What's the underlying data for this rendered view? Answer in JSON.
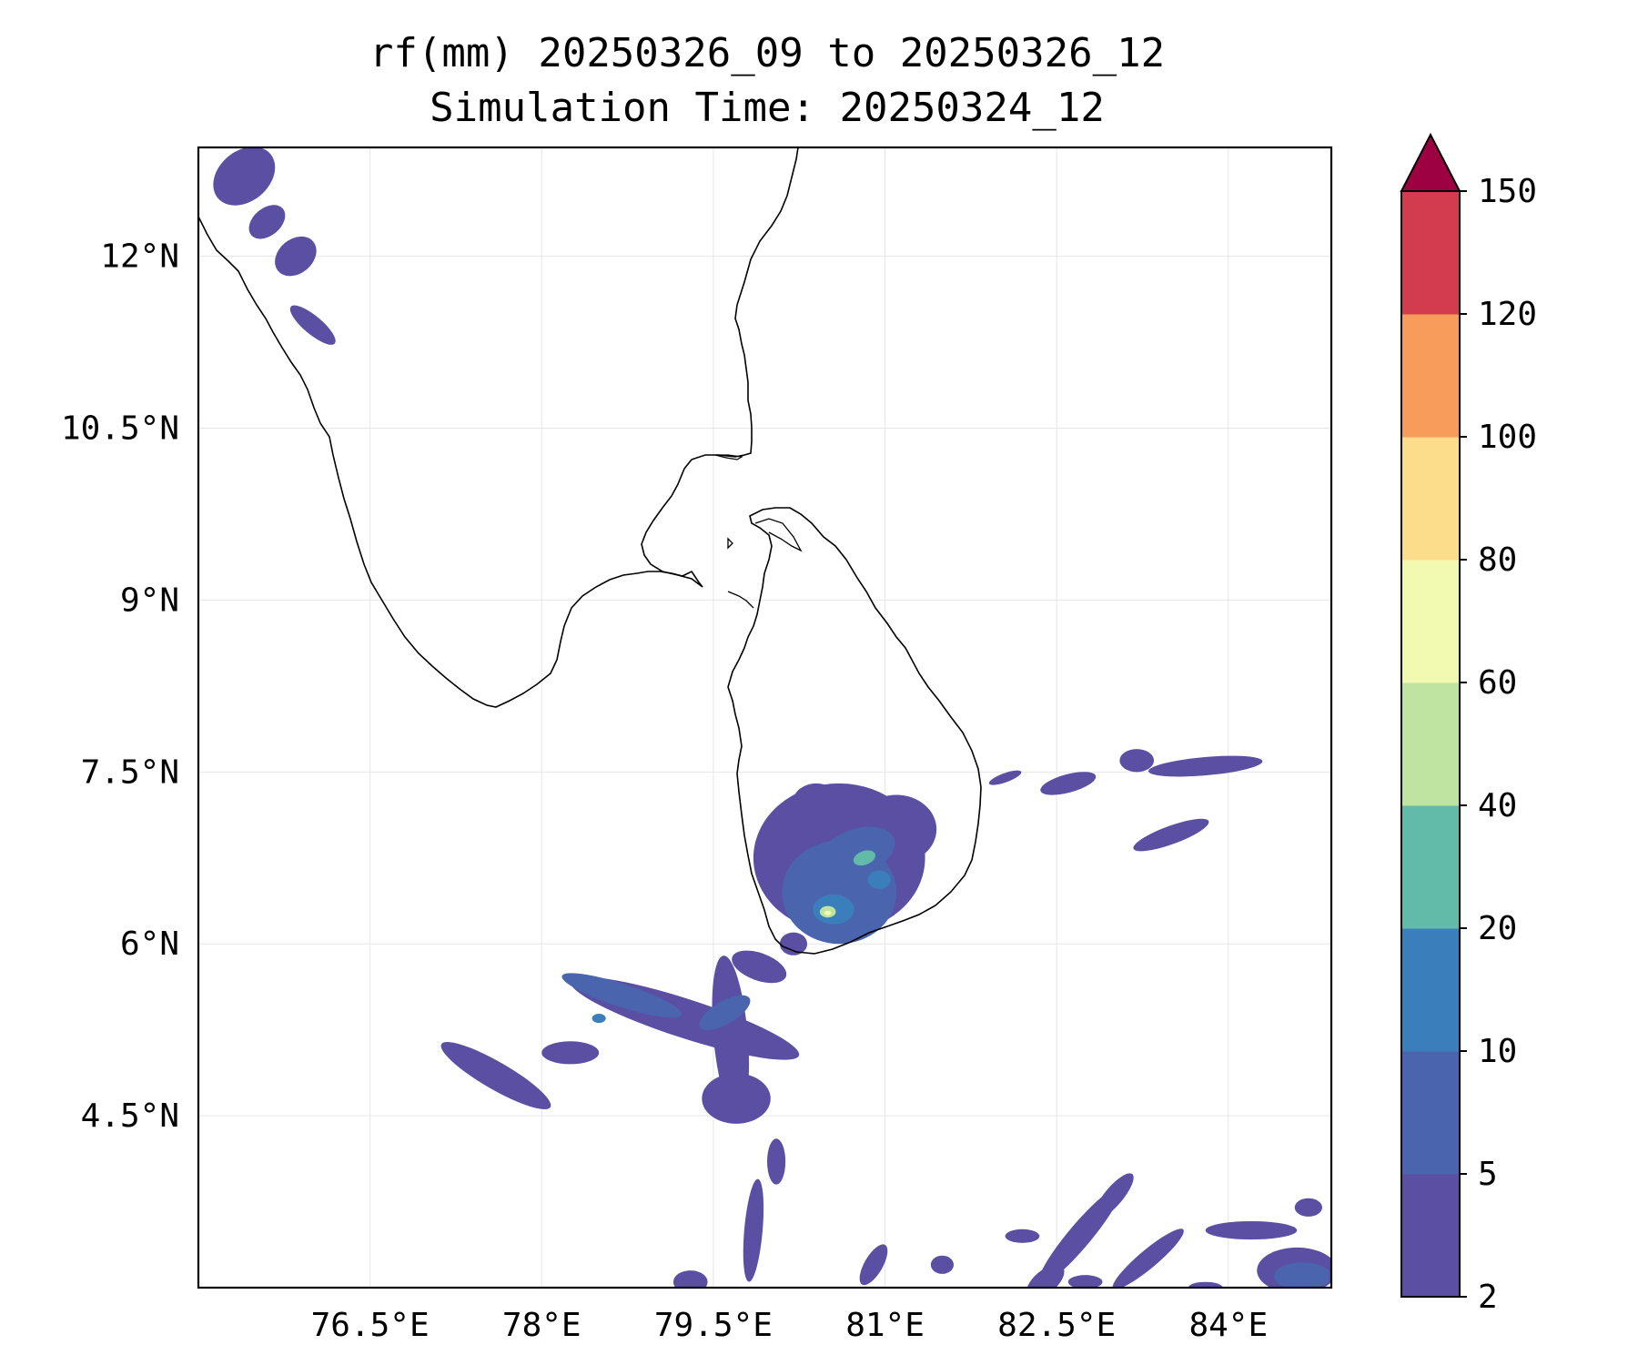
{
  "title": {
    "line1": "rf(mm) 20250326_09 to 20250326_12",
    "line2": "Simulation Time: 20250324_12"
  },
  "map": {
    "lon_range": [
      75.0,
      84.9
    ],
    "lat_range": [
      3.0,
      12.95
    ],
    "x_ticks": [
      {
        "value": 76.5,
        "label": "76.5°E"
      },
      {
        "value": 78.0,
        "label": "78°E"
      },
      {
        "value": 79.5,
        "label": "79.5°E"
      },
      {
        "value": 81.0,
        "label": "81°E"
      },
      {
        "value": 82.5,
        "label": "82.5°E"
      },
      {
        "value": 84.0,
        "label": "84°E"
      }
    ],
    "y_ticks": [
      {
        "value": 4.5,
        "label": "4.5°N"
      },
      {
        "value": 6.0,
        "label": "6°N"
      },
      {
        "value": 7.5,
        "label": "7.5°N"
      },
      {
        "value": 9.0,
        "label": "9°N"
      },
      {
        "value": 10.5,
        "label": "10.5°N"
      },
      {
        "value": 12.0,
        "label": "12°N"
      }
    ],
    "grid": true,
    "rain_cells": [
      {
        "lon": 75.4,
        "lat": 12.7,
        "rx": 0.3,
        "ry": 0.22,
        "rot": -40,
        "level": 1
      },
      {
        "lon": 75.6,
        "lat": 12.3,
        "rx": 0.18,
        "ry": 0.12,
        "rot": -40,
        "level": 1
      },
      {
        "lon": 75.85,
        "lat": 12.0,
        "rx": 0.2,
        "ry": 0.15,
        "rot": -40,
        "level": 1
      },
      {
        "lon": 76.0,
        "lat": 11.4,
        "rx": 0.25,
        "ry": 0.08,
        "rot": 40,
        "level": 1
      },
      {
        "lon": 80.6,
        "lat": 6.75,
        "rx": 0.75,
        "ry": 0.65,
        "rot": 0,
        "level": 1
      },
      {
        "lon": 81.1,
        "lat": 7.0,
        "rx": 0.35,
        "ry": 0.3,
        "rot": 0,
        "level": 1
      },
      {
        "lon": 80.4,
        "lat": 7.25,
        "rx": 0.2,
        "ry": 0.15,
        "rot": 0,
        "level": 1
      },
      {
        "lon": 80.6,
        "lat": 6.45,
        "rx": 0.5,
        "ry": 0.45,
        "rot": 0,
        "level": 2
      },
      {
        "lon": 80.75,
        "lat": 6.8,
        "rx": 0.35,
        "ry": 0.2,
        "rot": -20,
        "level": 2
      },
      {
        "lon": 80.55,
        "lat": 6.3,
        "rx": 0.18,
        "ry": 0.13,
        "rot": 0,
        "level": 3
      },
      {
        "lon": 80.95,
        "lat": 6.56,
        "rx": 0.1,
        "ry": 0.08,
        "rot": 0,
        "level": 3
      },
      {
        "lon": 80.82,
        "lat": 6.75,
        "rx": 0.1,
        "ry": 0.06,
        "rot": -20,
        "level": 4
      },
      {
        "lon": 80.5,
        "lat": 6.28,
        "rx": 0.07,
        "ry": 0.05,
        "rot": 0,
        "level": 5
      },
      {
        "lon": 80.5,
        "lat": 6.27,
        "rx": 0.03,
        "ry": 0.02,
        "rot": 0,
        "level": 6
      },
      {
        "lon": 79.25,
        "lat": 5.35,
        "rx": 1.05,
        "ry": 0.17,
        "rot": 18,
        "level": 1
      },
      {
        "lon": 79.65,
        "lat": 5.2,
        "rx": 0.15,
        "ry": 0.7,
        "rot": -5,
        "level": 1
      },
      {
        "lon": 79.7,
        "lat": 4.65,
        "rx": 0.3,
        "ry": 0.22,
        "rot": 0,
        "level": 1
      },
      {
        "lon": 78.7,
        "lat": 5.55,
        "rx": 0.55,
        "ry": 0.1,
        "rot": 18,
        "level": 2
      },
      {
        "lon": 79.6,
        "lat": 5.4,
        "rx": 0.25,
        "ry": 0.1,
        "rot": -30,
        "level": 2
      },
      {
        "lon": 77.6,
        "lat": 4.85,
        "rx": 0.55,
        "ry": 0.12,
        "rot": 30,
        "level": 1
      },
      {
        "lon": 78.25,
        "lat": 5.05,
        "rx": 0.25,
        "ry": 0.1,
        "rot": 0,
        "level": 1
      },
      {
        "lon": 78.5,
        "lat": 5.35,
        "rx": 0.06,
        "ry": 0.04,
        "rot": 0,
        "level": 3
      },
      {
        "lon": 79.9,
        "lat": 5.8,
        "rx": 0.25,
        "ry": 0.12,
        "rot": 20,
        "level": 1
      },
      {
        "lon": 80.2,
        "lat": 6.0,
        "rx": 0.12,
        "ry": 0.1,
        "rot": 0,
        "level": 1
      },
      {
        "lon": 82.6,
        "lat": 7.4,
        "rx": 0.25,
        "ry": 0.08,
        "rot": -15,
        "level": 1
      },
      {
        "lon": 83.2,
        "lat": 7.6,
        "rx": 0.15,
        "ry": 0.1,
        "rot": 0,
        "level": 1
      },
      {
        "lon": 83.8,
        "lat": 7.55,
        "rx": 0.5,
        "ry": 0.08,
        "rot": -5,
        "level": 1
      },
      {
        "lon": 83.5,
        "lat": 6.95,
        "rx": 0.35,
        "ry": 0.08,
        "rot": -20,
        "level": 1
      },
      {
        "lon": 82.05,
        "lat": 7.45,
        "rx": 0.15,
        "ry": 0.04,
        "rot": -20,
        "level": 1
      },
      {
        "lon": 79.85,
        "lat": 3.5,
        "rx": 0.08,
        "ry": 0.45,
        "rot": 5,
        "level": 1
      },
      {
        "lon": 80.05,
        "lat": 4.1,
        "rx": 0.08,
        "ry": 0.2,
        "rot": 0,
        "level": 1
      },
      {
        "lon": 79.3,
        "lat": 3.05,
        "rx": 0.15,
        "ry": 0.1,
        "rot": 0,
        "level": 1
      },
      {
        "lon": 80.9,
        "lat": 3.2,
        "rx": 0.08,
        "ry": 0.2,
        "rot": 30,
        "level": 1
      },
      {
        "lon": 82.7,
        "lat": 3.45,
        "rx": 0.55,
        "ry": 0.1,
        "rot": -50,
        "level": 1
      },
      {
        "lon": 83.3,
        "lat": 3.25,
        "rx": 0.4,
        "ry": 0.08,
        "rot": -40,
        "level": 1
      },
      {
        "lon": 84.2,
        "lat": 3.5,
        "rx": 0.4,
        "ry": 0.08,
        "rot": 0,
        "level": 1
      },
      {
        "lon": 84.6,
        "lat": 3.15,
        "rx": 0.35,
        "ry": 0.2,
        "rot": 0,
        "level": 1
      },
      {
        "lon": 84.65,
        "lat": 3.1,
        "rx": 0.25,
        "ry": 0.12,
        "rot": 0,
        "level": 2
      },
      {
        "lon": 83.0,
        "lat": 3.8,
        "rx": 0.25,
        "ry": 0.08,
        "rot": -50,
        "level": 1
      },
      {
        "lon": 82.2,
        "lat": 3.45,
        "rx": 0.15,
        "ry": 0.06,
        "rot": 0,
        "level": 1
      },
      {
        "lon": 81.5,
        "lat": 3.2,
        "rx": 0.1,
        "ry": 0.08,
        "rot": 0,
        "level": 1
      },
      {
        "lon": 84.7,
        "lat": 3.7,
        "rx": 0.12,
        "ry": 0.08,
        "rot": 0,
        "level": 1
      },
      {
        "lon": 82.4,
        "lat": 3.05,
        "rx": 0.2,
        "ry": 0.1,
        "rot": -40,
        "level": 1
      },
      {
        "lon": 82.75,
        "lat": 3.05,
        "rx": 0.15,
        "ry": 0.06,
        "rot": 0,
        "level": 1
      },
      {
        "lon": 83.8,
        "lat": 3.0,
        "rx": 0.15,
        "ry": 0.05,
        "rot": 0,
        "level": 1
      }
    ]
  },
  "colorbar": {
    "levels": [
      2,
      5,
      10,
      20,
      40,
      60,
      80,
      100,
      120,
      150
    ],
    "tick_labels": [
      "2",
      "5",
      "10",
      "20",
      "40",
      "60",
      "80",
      "100",
      "120",
      "150"
    ],
    "colors": [
      "#5a4fa3",
      "#4a65ae",
      "#3a7fbc",
      "#62bba8",
      "#bfe3a0",
      "#f2f9b0",
      "#fbdd8c",
      "#f89c5b",
      "#d33c4e"
    ],
    "extend_color": "#9e0142"
  }
}
